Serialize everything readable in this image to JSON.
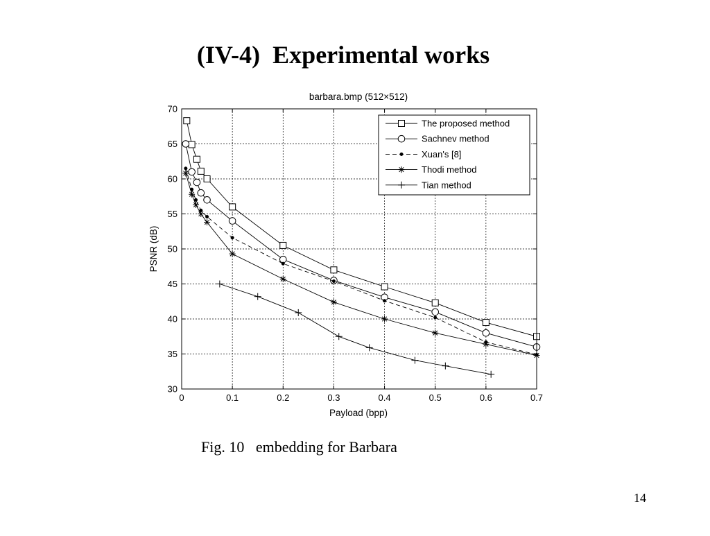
{
  "slide": {
    "title": "(IV-4)  Experimental works",
    "caption": "Fig. 10   embedding for Barbara",
    "page_number": "14"
  },
  "chart_data": {
    "type": "line",
    "title": "barbara.bmp (512×512)",
    "xlabel": "Payload (bpp)",
    "ylabel": "PSNR (dB)",
    "xlim": [
      0,
      0.7
    ],
    "ylim": [
      30,
      70
    ],
    "xticks": [
      "0",
      "0.1",
      "0.2",
      "0.3",
      "0.4",
      "0.5",
      "0.6",
      "0.7"
    ],
    "yticks": [
      "30",
      "35",
      "40",
      "45",
      "50",
      "55",
      "60",
      "65",
      "70"
    ],
    "grid": true,
    "legend_position": "top-right",
    "series": [
      {
        "name": "The proposed method",
        "marker": "square",
        "dash": "solid",
        "x": [
          0.01,
          0.02,
          0.03,
          0.038,
          0.05,
          0.1,
          0.2,
          0.3,
          0.4,
          0.5,
          0.6,
          0.7
        ],
        "y": [
          68.3,
          64.9,
          62.8,
          61.1,
          60.0,
          56.0,
          50.5,
          47.0,
          44.6,
          42.3,
          39.5,
          37.5
        ]
      },
      {
        "name": "Sachnev method",
        "marker": "circle",
        "dash": "solid",
        "x": [
          0.008,
          0.02,
          0.03,
          0.038,
          0.05,
          0.1,
          0.2,
          0.3,
          0.4,
          0.5,
          0.6,
          0.7
        ],
        "y": [
          65.0,
          61.0,
          59.5,
          58.0,
          57.0,
          54.0,
          48.5,
          45.5,
          43.1,
          41.0,
          38.0,
          36.0
        ]
      },
      {
        "name": "Xuan's [8]",
        "marker": "dot",
        "dash": "dashed",
        "x": [
          0.008,
          0.02,
          0.028,
          0.038,
          0.05,
          0.1,
          0.2,
          0.3,
          0.4,
          0.5,
          0.6,
          0.7
        ],
        "y": [
          61.5,
          58.5,
          57.0,
          55.5,
          54.6,
          51.6,
          47.9,
          45.4,
          42.6,
          40.2,
          36.7,
          34.9
        ]
      },
      {
        "name": "Thodi method",
        "marker": "star",
        "dash": "solid",
        "x": [
          0.008,
          0.02,
          0.028,
          0.038,
          0.05,
          0.1,
          0.2,
          0.3,
          0.4,
          0.5,
          0.6,
          0.7
        ],
        "y": [
          60.8,
          57.8,
          56.3,
          55.0,
          53.8,
          49.3,
          45.7,
          42.4,
          40.0,
          38.0,
          36.4,
          34.8
        ]
      },
      {
        "name": "Tian method",
        "marker": "plus",
        "dash": "solid",
        "x": [
          0.075,
          0.15,
          0.23,
          0.31,
          0.37,
          0.46,
          0.52,
          0.61
        ],
        "y": [
          45.0,
          43.2,
          40.9,
          37.5,
          35.9,
          34.1,
          33.3,
          32.1
        ]
      }
    ]
  }
}
